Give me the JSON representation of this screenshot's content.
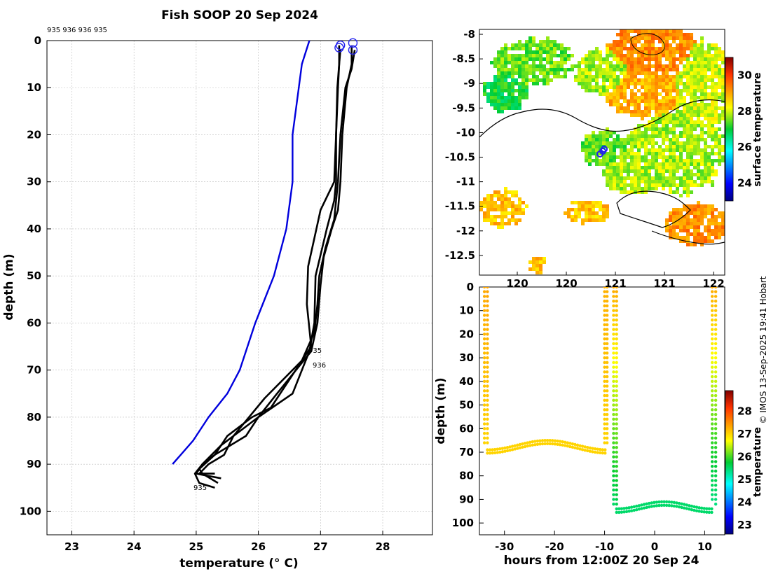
{
  "colors": {
    "profile": "#000000",
    "climatology": "#0000dd",
    "marker": "#2222ee"
  },
  "chart_data": [
    {
      "type": "line",
      "title": "Fish SOOP 20 Sep 2024",
      "subtitle": "935 936 936 935",
      "xlabel": "temperature (° C)",
      "ylabel": "depth (m)",
      "xlim": [
        22.6,
        28.8
      ],
      "ylim": [
        105,
        0
      ],
      "xticks": [
        23,
        24,
        25,
        26,
        27,
        28
      ],
      "yticks": [
        0,
        10,
        20,
        30,
        40,
        50,
        60,
        70,
        80,
        90,
        100
      ],
      "grid": true,
      "annotations": [
        "935",
        "936",
        "935"
      ],
      "series": [
        {
          "name": "climatology",
          "color": "#0000dd",
          "x": [
            26.82,
            26.7,
            26.65,
            26.55,
            26.55,
            26.45,
            26.25,
            25.95,
            25.7,
            25.5,
            25.2,
            24.95,
            24.62
          ],
          "y": [
            0,
            5,
            10,
            20,
            30,
            40,
            50,
            60,
            70,
            75,
            80,
            85,
            90
          ]
        },
        {
          "name": "profile-935a",
          "color": "#000000",
          "x": [
            27.3,
            27.3,
            27.27,
            27.25,
            27.25,
            27.22,
            27.1,
            26.92,
            26.9,
            26.82,
            26.55,
            26.0,
            25.7,
            25.4,
            25.1,
            24.98,
            25.05,
            25.3
          ],
          "y": [
            1,
            5,
            10,
            20,
            30,
            34,
            40,
            50,
            60,
            66,
            75,
            80,
            83,
            86,
            90,
            92,
            94,
            95
          ]
        },
        {
          "name": "profile-936a",
          "color": "#000000",
          "x": [
            27.5,
            27.5,
            27.42,
            27.35,
            27.32,
            27.28,
            27.18,
            27.05,
            27.0,
            26.95,
            26.85,
            26.3,
            26.0,
            25.8,
            25.55,
            25.3,
            25.1,
            25.0,
            25.4
          ],
          "y": [
            1,
            5,
            10,
            20,
            30,
            36,
            40,
            46,
            52,
            60,
            66,
            75,
            80,
            84,
            86,
            88,
            90,
            92,
            93
          ]
        },
        {
          "name": "profile-936b",
          "color": "#000000",
          "x": [
            27.55,
            27.5,
            27.4,
            27.32,
            27.28,
            27.22,
            27.08,
            26.98,
            26.95,
            26.9,
            26.7,
            26.1,
            25.85,
            25.6,
            25.45,
            25.2,
            25.05,
            25.3
          ],
          "y": [
            2,
            6,
            10,
            20,
            30,
            38,
            44,
            50,
            56,
            62,
            68,
            76,
            80,
            84,
            88,
            90,
            92,
            92
          ]
        },
        {
          "name": "profile-935b",
          "color": "#000000",
          "x": [
            27.32,
            27.3,
            27.28,
            27.25,
            27.22,
            27.0,
            26.9,
            26.8,
            26.78,
            26.85,
            26.5,
            26.2,
            25.9,
            25.5,
            25.3,
            25.05,
            25.1,
            25.35
          ],
          "y": [
            2,
            5,
            10,
            20,
            30,
            36,
            42,
            48,
            56,
            65,
            72,
            78,
            80,
            84,
            88,
            91,
            92,
            94
          ]
        }
      ],
      "markers": [
        {
          "name": "surface-935a",
          "x": 27.32,
          "y": 1
        },
        {
          "name": "surface-936a",
          "x": 27.52,
          "y": 0.5
        },
        {
          "name": "surface-936b",
          "x": 27.52,
          "y": 2
        },
        {
          "name": "surface-935b",
          "x": 27.3,
          "y": 1.5
        }
      ]
    },
    {
      "type": "heatmap",
      "xticks": [
        120,
        120.5,
        121,
        121.5,
        122
      ],
      "xtick_labels": [
        "120",
        "120",
        "121",
        "121",
        "122"
      ],
      "ylim": [
        -12.9,
        -7.9
      ],
      "yticks": [
        -8,
        -8.5,
        -9,
        -9.5,
        -10,
        -10.5,
        -11,
        -11.5,
        -12,
        -12.5
      ],
      "colorbar_label": "surface temperature",
      "colorbar_range": [
        23,
        31
      ],
      "colorbar_ticks": [
        24,
        26,
        28,
        30
      ]
    },
    {
      "type": "scatter",
      "xlabel": "hours from 12:00Z 20 Sep 24",
      "ylabel": "depth (m)",
      "xlim": [
        -35,
        14
      ],
      "ylim": [
        105,
        0
      ],
      "xticks": [
        -30,
        -20,
        -10,
        0,
        10
      ],
      "yticks": [
        0,
        10,
        20,
        30,
        40,
        50,
        60,
        70,
        80,
        90,
        100
      ],
      "colorbar_label": "temperature",
      "colorbar_range": [
        22.6,
        28.9
      ],
      "colorbar_ticks": [
        23,
        24,
        25,
        26,
        27,
        28
      ]
    }
  ],
  "credit": "© IMOS 13-Sep-2025 19:41 Hobart"
}
